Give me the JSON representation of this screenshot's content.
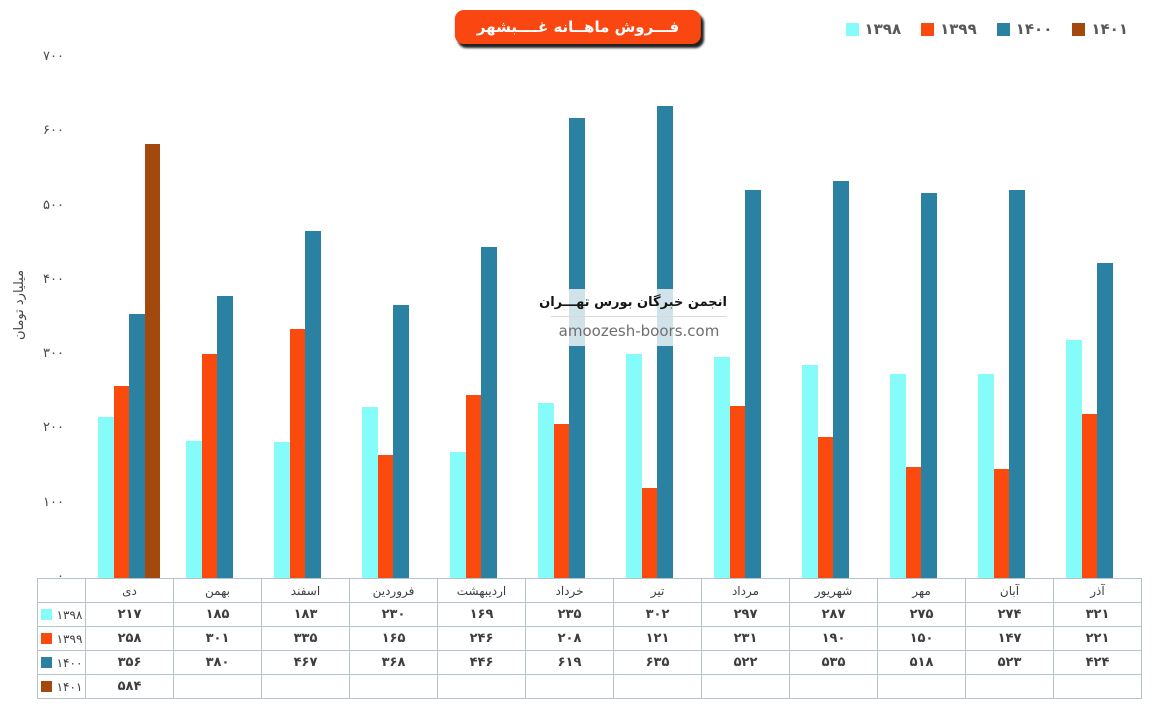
{
  "title": "فـــروش ماهــانه غــــبشهر",
  "watermark": {
    "line1": "انجمن خبرگان بورس تهـــران",
    "line2": "amoozesh-boors.com"
  },
  "chart_data": {
    "type": "bar",
    "title": "فـــروش ماهــانه غــــبشهر",
    "categories": [
      "دی",
      "بهمن",
      "اسفند",
      "فروردین",
      "اردیبهشت",
      "خرداد",
      "تیر",
      "مرداد",
      "شهریور",
      "مهر",
      "آبان",
      "آذر"
    ],
    "series": [
      {
        "name": "۱۳۹۸",
        "year": 1398,
        "color": "#85fbfa",
        "values": [
          217,
          185,
          183,
          230,
          169,
          235,
          302,
          297,
          287,
          275,
          274,
          321
        ]
      },
      {
        "name": "۱۳۹۹",
        "year": 1399,
        "color": "#fb4a0e",
        "values": [
          258,
          301,
          335,
          165,
          246,
          208,
          121,
          231,
          190,
          150,
          147,
          221
        ]
      },
      {
        "name": "۱۴۰۰",
        "year": 1400,
        "color": "#2b81a2",
        "values": [
          356,
          380,
          467,
          368,
          446,
          619,
          635,
          522,
          535,
          518,
          523,
          424
        ]
      },
      {
        "name": "۱۴۰۱",
        "year": 1401,
        "color": "#a3490d",
        "values": [
          584,
          null,
          null,
          null,
          null,
          null,
          null,
          null,
          null,
          null,
          null,
          null
        ]
      }
    ],
    "xlabel": "",
    "ylabel": "میلیارد تومان",
    "ylim": [
      0,
      700
    ],
    "yticks": [
      0,
      100,
      200,
      300,
      400,
      500,
      600,
      700
    ],
    "grid": false,
    "legend_position": "top-right",
    "table_shown": true
  },
  "colors": {
    "title_box_bg": "#fa4711",
    "title_text": "#ffffff",
    "legend_text": "#595959",
    "axis_text": "#4a4a4a",
    "table_border": "#b5c3cc",
    "table_text": "#3e3e3e",
    "watermark_domain_text": "#6f6f6f"
  }
}
